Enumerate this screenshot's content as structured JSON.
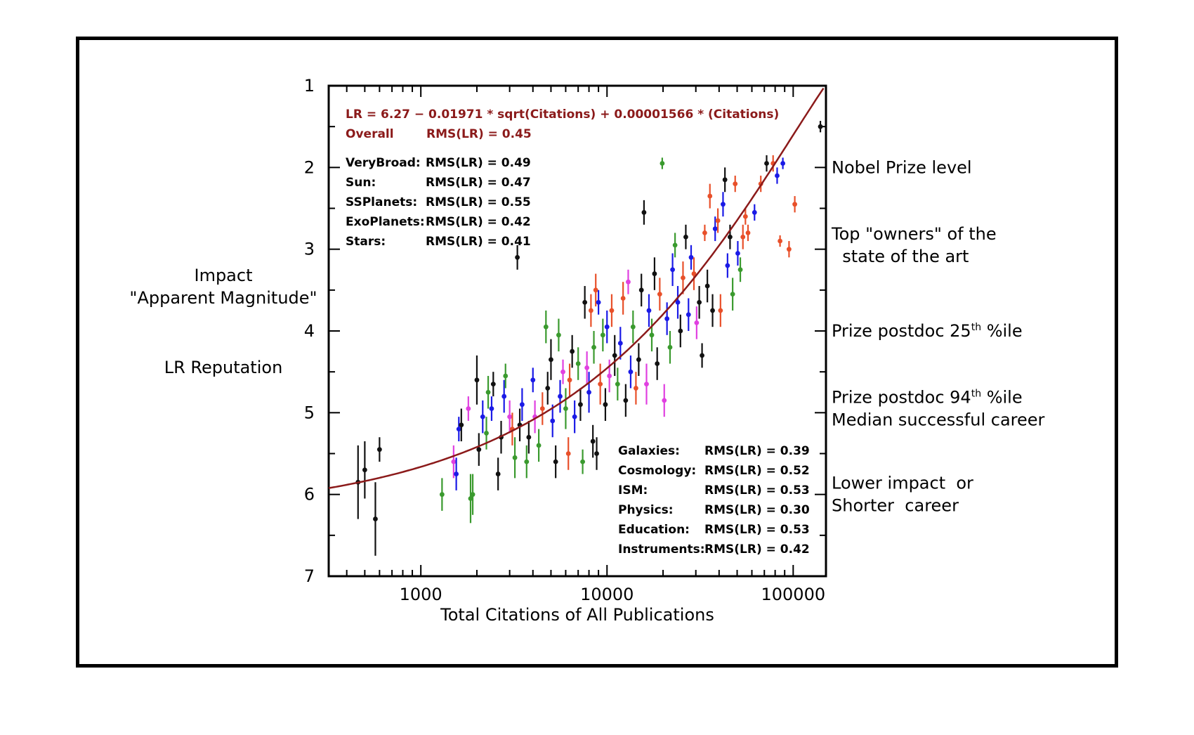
{
  "chart_data": {
    "type": "scatter",
    "xlabel": "Total Citations of All Publications",
    "ylabel_lines": [
      "Impact",
      "\"Apparent Magnitude\"",
      "",
      "LR Reputation"
    ],
    "x_scale": "log",
    "xlim": [
      320,
      150000
    ],
    "ylim": [
      7,
      1
    ],
    "y_inverted": true,
    "x_tick_labels": [
      "1000",
      "10000",
      "100000"
    ],
    "x_tick_values": [
      1000,
      10000,
      100000
    ],
    "y_tick_labels": [
      "1",
      "2",
      "3",
      "4",
      "5",
      "6",
      "7"
    ],
    "y_tick_values": [
      1,
      2,
      3,
      4,
      5,
      6,
      7
    ],
    "fit": {
      "equation_label": "LR = 6.27 − 0.01971 * sqrt(Citations) + 0.00001566 * (Citations)",
      "overall_label": "Overall",
      "overall_rms": "RMS(LR) = 0.45",
      "color": "#8b1a1a",
      "a": 6.27,
      "b": -0.01971,
      "c": 1.566e-05
    },
    "legend_top": [
      {
        "name": "VeryBroad:",
        "rms": "RMS(LR) = 0.49"
      },
      {
        "name": "Sun:",
        "rms": "RMS(LR) = 0.47"
      },
      {
        "name": "SSPlanets:",
        "rms": "RMS(LR) = 0.55"
      },
      {
        "name": "ExoPlanets:",
        "rms": "RMS(LR) = 0.42"
      },
      {
        "name": "Stars:",
        "rms": "RMS(LR) = 0.41"
      }
    ],
    "legend_bottom": [
      {
        "name": "Galaxies:",
        "rms": "RMS(LR) = 0.39"
      },
      {
        "name": "Cosmology:",
        "rms": "RMS(LR) = 0.52"
      },
      {
        "name": "ISM:",
        "rms": "RMS(LR) = 0.53"
      },
      {
        "name": "Physics:",
        "rms": "RMS(LR) = 0.30"
      },
      {
        "name": "Education:",
        "rms": "RMS(LR) = 0.53"
      },
      {
        "name": "Instruments:",
        "rms": "RMS(LR) = 0.42"
      }
    ],
    "annotations_right": [
      {
        "lines": [
          "Nobel Prize level"
        ],
        "lr": 2.0
      },
      {
        "lines": [
          "Top \"owners\" of the",
          "  state of the art"
        ],
        "lr": 2.95
      },
      {
        "lines": [
          "Prize postdoc 25th %ile"
        ],
        "lr": 4.0,
        "sup_after": "Prize postdoc 25",
        "sup": "th",
        "sup_rest": " %ile"
      },
      {
        "lines": [
          "Prize postdoc 94th %ile",
          "Median successful career"
        ],
        "lr": 4.95,
        "sup_after": "Prize postdoc 94",
        "sup": "th",
        "sup_rest": " %ile"
      },
      {
        "lines": [
          "Lower impact  or",
          "Shorter  career"
        ],
        "lr": 6.0
      }
    ],
    "series_colors": {
      "black": "#111111",
      "blue": "#1a1ae6",
      "red": "#e8502a",
      "green": "#3a9a2e",
      "magenta": "#e040e0"
    },
    "points": [
      {
        "x": 460,
        "y": 5.85,
        "e": 0.45,
        "c": "black"
      },
      {
        "x": 500,
        "y": 5.7,
        "e": 0.35,
        "c": "black"
      },
      {
        "x": 570,
        "y": 6.3,
        "e": 0.45,
        "c": "black"
      },
      {
        "x": 600,
        "y": 5.45,
        "e": 0.15,
        "c": "black"
      },
      {
        "x": 3300,
        "y": 3.1,
        "e": 0.15,
        "c": "black"
      },
      {
        "x": 140000,
        "y": 1.5,
        "e": 0.07,
        "c": "black"
      },
      {
        "x": 1300,
        "y": 6.0,
        "e": 0.2,
        "c": "green"
      },
      {
        "x": 1500,
        "y": 5.6,
        "e": 0.2,
        "c": "magenta"
      },
      {
        "x": 1550,
        "y": 5.75,
        "e": 0.2,
        "c": "blue"
      },
      {
        "x": 1600,
        "y": 5.2,
        "e": 0.15,
        "c": "blue"
      },
      {
        "x": 1650,
        "y": 5.15,
        "e": 0.2,
        "c": "black"
      },
      {
        "x": 1800,
        "y": 4.95,
        "e": 0.15,
        "c": "magenta"
      },
      {
        "x": 1850,
        "y": 6.05,
        "e": 0.3,
        "c": "green"
      },
      {
        "x": 1900,
        "y": 6.0,
        "e": 0.25,
        "c": "green"
      },
      {
        "x": 2000,
        "y": 4.6,
        "e": 0.3,
        "c": "black"
      },
      {
        "x": 2050,
        "y": 5.45,
        "e": 0.2,
        "c": "black"
      },
      {
        "x": 2150,
        "y": 5.05,
        "e": 0.2,
        "c": "blue"
      },
      {
        "x": 2250,
        "y": 5.25,
        "e": 0.2,
        "c": "green"
      },
      {
        "x": 2300,
        "y": 4.75,
        "e": 0.2,
        "c": "green"
      },
      {
        "x": 2400,
        "y": 4.95,
        "e": 0.15,
        "c": "blue"
      },
      {
        "x": 2450,
        "y": 4.65,
        "e": 0.15,
        "c": "black"
      },
      {
        "x": 2600,
        "y": 5.75,
        "e": 0.2,
        "c": "black"
      },
      {
        "x": 2700,
        "y": 5.3,
        "e": 0.2,
        "c": "black"
      },
      {
        "x": 2800,
        "y": 4.8,
        "e": 0.2,
        "c": "blue"
      },
      {
        "x": 2850,
        "y": 4.55,
        "e": 0.15,
        "c": "green"
      },
      {
        "x": 3000,
        "y": 5.05,
        "e": 0.2,
        "c": "magenta"
      },
      {
        "x": 3100,
        "y": 5.2,
        "e": 0.2,
        "c": "red"
      },
      {
        "x": 3200,
        "y": 5.55,
        "e": 0.25,
        "c": "green"
      },
      {
        "x": 3400,
        "y": 5.15,
        "e": 0.2,
        "c": "black"
      },
      {
        "x": 3500,
        "y": 4.9,
        "e": 0.2,
        "c": "blue"
      },
      {
        "x": 3700,
        "y": 5.6,
        "e": 0.2,
        "c": "green"
      },
      {
        "x": 3800,
        "y": 5.3,
        "e": 0.2,
        "c": "black"
      },
      {
        "x": 4000,
        "y": 4.6,
        "e": 0.15,
        "c": "blue"
      },
      {
        "x": 4100,
        "y": 5.05,
        "e": 0.2,
        "c": "magenta"
      },
      {
        "x": 4300,
        "y": 5.4,
        "e": 0.2,
        "c": "green"
      },
      {
        "x": 4500,
        "y": 4.95,
        "e": 0.2,
        "c": "red"
      },
      {
        "x": 4700,
        "y": 3.95,
        "e": 0.2,
        "c": "green"
      },
      {
        "x": 4800,
        "y": 4.7,
        "e": 0.2,
        "c": "black"
      },
      {
        "x": 5000,
        "y": 4.35,
        "e": 0.25,
        "c": "black"
      },
      {
        "x": 5100,
        "y": 5.1,
        "e": 0.2,
        "c": "blue"
      },
      {
        "x": 5300,
        "y": 5.6,
        "e": 0.2,
        "c": "black"
      },
      {
        "x": 5500,
        "y": 4.05,
        "e": 0.2,
        "c": "green"
      },
      {
        "x": 5600,
        "y": 4.8,
        "e": 0.2,
        "c": "blue"
      },
      {
        "x": 5800,
        "y": 4.5,
        "e": 0.15,
        "c": "magenta"
      },
      {
        "x": 6000,
        "y": 4.95,
        "e": 0.25,
        "c": "green"
      },
      {
        "x": 6200,
        "y": 5.5,
        "e": 0.2,
        "c": "red"
      },
      {
        "x": 6300,
        "y": 4.6,
        "e": 0.2,
        "c": "red"
      },
      {
        "x": 6500,
        "y": 4.25,
        "e": 0.2,
        "c": "black"
      },
      {
        "x": 6700,
        "y": 5.05,
        "e": 0.2,
        "c": "blue"
      },
      {
        "x": 7000,
        "y": 4.4,
        "e": 0.2,
        "c": "green"
      },
      {
        "x": 7200,
        "y": 4.9,
        "e": 0.2,
        "c": "black"
      },
      {
        "x": 7400,
        "y": 5.6,
        "e": 0.15,
        "c": "green"
      },
      {
        "x": 7600,
        "y": 3.65,
        "e": 0.2,
        "c": "black"
      },
      {
        "x": 7800,
        "y": 4.45,
        "e": 0.2,
        "c": "magenta"
      },
      {
        "x": 8000,
        "y": 4.75,
        "e": 0.25,
        "c": "blue"
      },
      {
        "x": 8200,
        "y": 3.75,
        "e": 0.2,
        "c": "red"
      },
      {
        "x": 8400,
        "y": 5.35,
        "e": 0.2,
        "c": "black"
      },
      {
        "x": 8500,
        "y": 4.2,
        "e": 0.2,
        "c": "green"
      },
      {
        "x": 8700,
        "y": 3.5,
        "e": 0.2,
        "c": "red"
      },
      {
        "x": 8800,
        "y": 5.5,
        "e": 0.2,
        "c": "black"
      },
      {
        "x": 9000,
        "y": 3.65,
        "e": 0.15,
        "c": "blue"
      },
      {
        "x": 9200,
        "y": 4.65,
        "e": 0.25,
        "c": "red"
      },
      {
        "x": 9500,
        "y": 4.05,
        "e": 0.2,
        "c": "green"
      },
      {
        "x": 9800,
        "y": 4.9,
        "e": 0.2,
        "c": "black"
      },
      {
        "x": 10000,
        "y": 3.95,
        "e": 0.2,
        "c": "blue"
      },
      {
        "x": 10300,
        "y": 4.55,
        "e": 0.2,
        "c": "magenta"
      },
      {
        "x": 10600,
        "y": 3.75,
        "e": 0.2,
        "c": "red"
      },
      {
        "x": 11000,
        "y": 4.3,
        "e": 0.25,
        "c": "black"
      },
      {
        "x": 11400,
        "y": 4.65,
        "e": 0.2,
        "c": "green"
      },
      {
        "x": 11800,
        "y": 4.15,
        "e": 0.2,
        "c": "blue"
      },
      {
        "x": 12200,
        "y": 3.6,
        "e": 0.2,
        "c": "red"
      },
      {
        "x": 12600,
        "y": 4.85,
        "e": 0.2,
        "c": "black"
      },
      {
        "x": 13000,
        "y": 3.4,
        "e": 0.15,
        "c": "magenta"
      },
      {
        "x": 13400,
        "y": 4.5,
        "e": 0.2,
        "c": "blue"
      },
      {
        "x": 13800,
        "y": 3.95,
        "e": 0.2,
        "c": "green"
      },
      {
        "x": 14300,
        "y": 4.7,
        "e": 0.2,
        "c": "red"
      },
      {
        "x": 14800,
        "y": 4.35,
        "e": 0.2,
        "c": "black"
      },
      {
        "x": 15300,
        "y": 3.5,
        "e": 0.2,
        "c": "black"
      },
      {
        "x": 15800,
        "y": 2.55,
        "e": 0.15,
        "c": "black"
      },
      {
        "x": 16300,
        "y": 4.65,
        "e": 0.25,
        "c": "magenta"
      },
      {
        "x": 16800,
        "y": 3.75,
        "e": 0.2,
        "c": "blue"
      },
      {
        "x": 17400,
        "y": 4.05,
        "e": 0.2,
        "c": "green"
      },
      {
        "x": 18000,
        "y": 3.3,
        "e": 0.2,
        "c": "black"
      },
      {
        "x": 18600,
        "y": 4.4,
        "e": 0.2,
        "c": "black"
      },
      {
        "x": 19200,
        "y": 3.55,
        "e": 0.2,
        "c": "red"
      },
      {
        "x": 19800,
        "y": 1.95,
        "e": 0.07,
        "c": "green"
      },
      {
        "x": 20300,
        "y": 4.85,
        "e": 0.2,
        "c": "magenta"
      },
      {
        "x": 21000,
        "y": 3.85,
        "e": 0.2,
        "c": "blue"
      },
      {
        "x": 21800,
        "y": 4.2,
        "e": 0.2,
        "c": "green"
      },
      {
        "x": 22500,
        "y": 3.25,
        "e": 0.2,
        "c": "blue"
      },
      {
        "x": 23200,
        "y": 2.95,
        "e": 0.15,
        "c": "green"
      },
      {
        "x": 24000,
        "y": 3.65,
        "e": 0.2,
        "c": "blue"
      },
      {
        "x": 24800,
        "y": 4.0,
        "e": 0.2,
        "c": "black"
      },
      {
        "x": 25600,
        "y": 3.35,
        "e": 0.2,
        "c": "red"
      },
      {
        "x": 26500,
        "y": 2.85,
        "e": 0.15,
        "c": "black"
      },
      {
        "x": 27400,
        "y": 3.8,
        "e": 0.2,
        "c": "blue"
      },
      {
        "x": 28300,
        "y": 3.1,
        "e": 0.15,
        "c": "blue"
      },
      {
        "x": 29300,
        "y": 3.3,
        "e": 0.2,
        "c": "red"
      },
      {
        "x": 30300,
        "y": 3.9,
        "e": 0.2,
        "c": "magenta"
      },
      {
        "x": 31300,
        "y": 3.65,
        "e": 0.2,
        "c": "black"
      },
      {
        "x": 32400,
        "y": 4.3,
        "e": 0.15,
        "c": "black"
      },
      {
        "x": 33500,
        "y": 2.8,
        "e": 0.1,
        "c": "red"
      },
      {
        "x": 34600,
        "y": 3.45,
        "e": 0.2,
        "c": "black"
      },
      {
        "x": 35700,
        "y": 2.35,
        "e": 0.15,
        "c": "red"
      },
      {
        "x": 36900,
        "y": 3.75,
        "e": 0.2,
        "c": "black"
      },
      {
        "x": 38100,
        "y": 2.75,
        "e": 0.15,
        "c": "blue"
      },
      {
        "x": 39400,
        "y": 2.65,
        "e": 0.15,
        "c": "red"
      },
      {
        "x": 40700,
        "y": 3.75,
        "e": 0.2,
        "c": "red"
      },
      {
        "x": 42000,
        "y": 2.45,
        "e": 0.15,
        "c": "blue"
      },
      {
        "x": 43000,
        "y": 2.15,
        "e": 0.15,
        "c": "black"
      },
      {
        "x": 44400,
        "y": 3.2,
        "e": 0.15,
        "c": "blue"
      },
      {
        "x": 45800,
        "y": 2.85,
        "e": 0.15,
        "c": "black"
      },
      {
        "x": 47300,
        "y": 3.55,
        "e": 0.2,
        "c": "green"
      },
      {
        "x": 48800,
        "y": 2.2,
        "e": 0.1,
        "c": "red"
      },
      {
        "x": 50400,
        "y": 3.05,
        "e": 0.15,
        "c": "blue"
      },
      {
        "x": 52000,
        "y": 3.25,
        "e": 0.15,
        "c": "green"
      },
      {
        "x": 53700,
        "y": 2.85,
        "e": 0.15,
        "c": "red"
      },
      {
        "x": 55400,
        "y": 2.6,
        "e": 0.1,
        "c": "red"
      },
      {
        "x": 57200,
        "y": 2.8,
        "e": 0.1,
        "c": "red"
      },
      {
        "x": 62000,
        "y": 2.55,
        "e": 0.1,
        "c": "blue"
      },
      {
        "x": 67000,
        "y": 2.2,
        "e": 0.1,
        "c": "red"
      },
      {
        "x": 72000,
        "y": 1.95,
        "e": 0.1,
        "c": "black"
      },
      {
        "x": 78000,
        "y": 1.95,
        "e": 0.1,
        "c": "red"
      },
      {
        "x": 82000,
        "y": 2.1,
        "e": 0.1,
        "c": "blue"
      },
      {
        "x": 85000,
        "y": 2.9,
        "e": 0.07,
        "c": "red"
      },
      {
        "x": 88000,
        "y": 1.95,
        "e": 0.07,
        "c": "blue"
      },
      {
        "x": 95000,
        "y": 3.0,
        "e": 0.1,
        "c": "red"
      },
      {
        "x": 102000,
        "y": 2.45,
        "e": 0.1,
        "c": "red"
      }
    ]
  }
}
